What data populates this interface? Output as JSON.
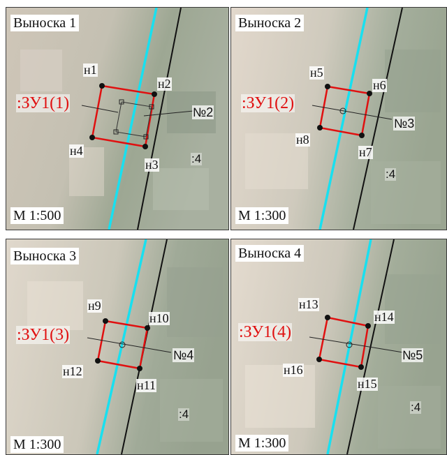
{
  "panels": [
    {
      "title": "Выноска 1",
      "scale": "М 1:500",
      "plot_label": ":ЗУ1(1)",
      "object_number": "№2",
      "quarter_label": ":4",
      "points": [
        "н1",
        "н2",
        "н3",
        "н4"
      ]
    },
    {
      "title": "Выноска 2",
      "scale": "М 1:300",
      "plot_label": ":ЗУ1(2)",
      "object_number": "№3",
      "quarter_label": ":4",
      "points": [
        "н5",
        "н6",
        "н7",
        "н8"
      ]
    },
    {
      "title": "Выноска 3",
      "scale": "М 1:300",
      "plot_label": ":ЗУ1(3)",
      "object_number": "№4",
      "quarter_label": ":4",
      "points": [
        "н9",
        "н10",
        "н11",
        "н12"
      ]
    },
    {
      "title": "Выноска 4",
      "scale": "М 1:300",
      "plot_label": ":ЗУ1(4)",
      "object_number": "№5",
      "quarter_label": ":4",
      "points": [
        "н13",
        "н14",
        "н15",
        "н16"
      ]
    }
  ],
  "colors": {
    "plot_boundary": "#e01010",
    "cyan_line": "#18e0f0",
    "black_line": "#111111",
    "imagery_light": "#d8cfc0",
    "imagery_dark": "#8f9a88"
  }
}
